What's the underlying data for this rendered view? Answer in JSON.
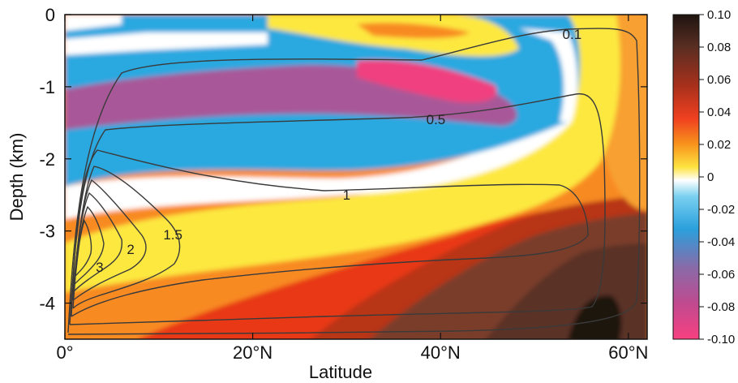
{
  "chart_data": {
    "type": "heatmap",
    "xlabel": "Latitude",
    "ylabel": "Depth (km)",
    "x_ticks": [
      {
        "value": 0,
        "label": "0°"
      },
      {
        "value": 20,
        "label": "20°N"
      },
      {
        "value": 40,
        "label": "40°N"
      },
      {
        "value": 60,
        "label": "60°N"
      }
    ],
    "y_ticks": [
      {
        "value": 0,
        "label": "0"
      },
      {
        "value": -1,
        "label": "-1"
      },
      {
        "value": -2,
        "label": "-2"
      },
      {
        "value": -3,
        "label": "-3"
      },
      {
        "value": -4,
        "label": "-4"
      }
    ],
    "xlim": [
      0,
      62
    ],
    "ylim": [
      -4.5,
      0
    ],
    "colorbar": {
      "range": [
        -0.1,
        0.1
      ],
      "ticks": [
        "0.10",
        "0.08",
        "0.06",
        "0.04",
        "0.02",
        "0",
        "-0.02",
        "-0.04",
        "-0.06",
        "-0.08",
        "-0.10"
      ]
    },
    "contour_labels": [
      {
        "text": "0.1",
        "lat": 54,
        "depth": -0.27
      },
      {
        "text": "0.5",
        "lat": 39.5,
        "depth": -1.45
      },
      {
        "text": "1",
        "lat": 30,
        "depth": -2.5
      },
      {
        "text": "1.5",
        "lat": 11.5,
        "depth": -3.05
      },
      {
        "text": "2",
        "lat": 7,
        "depth": -3.25
      },
      {
        "text": "3",
        "lat": 3.7,
        "depth": -3.5
      }
    ],
    "colors": {
      "pink": "#f0407f",
      "magenta": "#b05090",
      "blue": "#2aa8e0",
      "white": "#ffffff",
      "yellow": "#fde840",
      "orange": "#f88a20",
      "red": "#e83818",
      "brown": "#6a3a2a",
      "dark": "#2a1a14"
    }
  }
}
